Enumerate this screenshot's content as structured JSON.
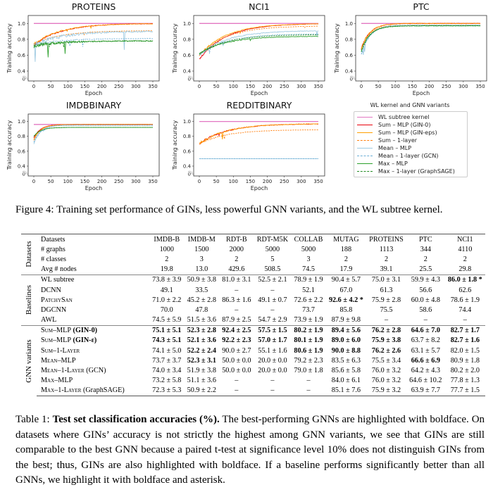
{
  "figure": {
    "caption": "Figure 4: Training set performance of GINs, less powerful GNN variants, and the WL subtree kernel.",
    "legend": {
      "title": "WL kernel and GNN variants",
      "items": [
        {
          "label": "WL subtree kernel",
          "color": "#e377c2",
          "style": "solid"
        },
        {
          "label": "Sum – MLP (GIN-0)",
          "color": "#e8000b",
          "style": "solid"
        },
        {
          "label": "Sum – MLP (GIN-eps)",
          "color": "#ff9f00",
          "style": "solid"
        },
        {
          "label": "Sum – 1-layer",
          "color": "#ff7f0e",
          "style": "dashed"
        },
        {
          "label": "Mean – MLP",
          "color": "#9ecae1",
          "style": "solid"
        },
        {
          "label": "Mean – 1-layer (GCN)",
          "color": "#6baed6",
          "style": "dashed"
        },
        {
          "label": "Max – MLP",
          "color": "#2ca02c",
          "style": "solid"
        },
        {
          "label": "Max – 1-layer (GraphSAGE)",
          "color": "#238b23",
          "style": "dashed"
        }
      ]
    }
  },
  "chart_data": [
    {
      "type": "line",
      "title": "PROTEINS",
      "xlabel": "Epoch",
      "ylabel": "Training accuracy",
      "xlim": [
        0,
        350
      ],
      "ylim": [
        0,
        1.1
      ],
      "xticks": [
        "0",
        "50",
        "100",
        "150",
        "200",
        "250",
        "300",
        "350"
      ],
      "yticks": [
        "0",
        "0.4",
        "0.6",
        "0.8",
        "1.0"
      ],
      "series": [
        {
          "name": "WL subtree kernel",
          "start": 1.0,
          "end": 1.0,
          "noise": 0
        },
        {
          "name": "Sum – MLP (GIN-0)",
          "start": 0.73,
          "end": 1.0,
          "noise": 0.03
        },
        {
          "name": "Sum – MLP (GIN-eps)",
          "start": 0.74,
          "end": 1.0,
          "noise": 0.03
        },
        {
          "name": "Sum – 1-layer",
          "start": 0.74,
          "end": 0.91,
          "noise": 0.01
        },
        {
          "name": "Mean – MLP",
          "start": 0.72,
          "end": 0.9,
          "noise": 0.08
        },
        {
          "name": "Mean – 1-layer (GCN)",
          "start": 0.73,
          "end": 0.81,
          "noise": 0.03
        },
        {
          "name": "Max – MLP",
          "start": 0.72,
          "end": 0.78,
          "noise": 0.06
        },
        {
          "name": "Max – 1-layer (GraphSAGE)",
          "start": 0.72,
          "end": 0.78,
          "noise": 0.03
        }
      ]
    },
    {
      "type": "line",
      "title": "NCI1",
      "xlabel": "Epoch",
      "ylabel": "Training accuracy",
      "xlim": [
        0,
        350
      ],
      "ylim": [
        0,
        1.1
      ],
      "xticks": [
        "0",
        "50",
        "100",
        "150",
        "200",
        "250",
        "300",
        "350"
      ],
      "yticks": [
        "0",
        "0.4",
        "0.6",
        "0.8",
        "1.0"
      ],
      "series": [
        {
          "name": "WL subtree kernel",
          "start": 1.0,
          "end": 1.0,
          "noise": 0
        },
        {
          "name": "Sum – MLP (GIN-0)",
          "start": 0.55,
          "end": 1.0,
          "noise": 0.02
        },
        {
          "name": "Sum – MLP (GIN-eps)",
          "start": 0.6,
          "end": 1.0,
          "noise": 0.02
        },
        {
          "name": "Sum – 1-layer",
          "start": 0.6,
          "end": 0.97,
          "noise": 0.01
        },
        {
          "name": "Mean – MLP",
          "start": 0.6,
          "end": 0.91,
          "noise": 0.03
        },
        {
          "name": "Mean – 1-layer (GCN)",
          "start": 0.6,
          "end": 0.87,
          "noise": 0.02
        },
        {
          "name": "Max – MLP",
          "start": 0.62,
          "end": 0.84,
          "noise": 0.02
        },
        {
          "name": "Max – 1-layer (GraphSAGE)",
          "start": 0.62,
          "end": 0.86,
          "noise": 0.01
        }
      ]
    },
    {
      "type": "line",
      "title": "PTC",
      "xlabel": "Epoch",
      "ylabel": "Training accuracy",
      "xlim": [
        0,
        350
      ],
      "ylim": [
        0,
        1.1
      ],
      "xticks": [
        "0",
        "50",
        "100",
        "150",
        "200",
        "250",
        "300",
        "350"
      ],
      "yticks": [
        "0",
        "0.4",
        "0.6",
        "0.8",
        "1.0"
      ],
      "series": [
        {
          "name": "WL subtree kernel",
          "start": 1.0,
          "end": 1.0,
          "noise": 0
        },
        {
          "name": "Sum – MLP (GIN-0)",
          "start": 0.68,
          "end": 1.0,
          "noise": 0.03
        },
        {
          "name": "Sum – MLP (GIN-eps)",
          "start": 0.68,
          "end": 1.0,
          "noise": 0.04
        },
        {
          "name": "Sum – 1-layer",
          "start": 0.68,
          "end": 0.98,
          "noise": 0.02
        },
        {
          "name": "Mean – MLP",
          "start": 0.6,
          "end": 0.98,
          "noise": 0.04
        },
        {
          "name": "Mean – 1-layer (GCN)",
          "start": 0.62,
          "end": 0.97,
          "noise": 0.03
        },
        {
          "name": "Max – MLP",
          "start": 0.65,
          "end": 0.97,
          "noise": 0.03
        },
        {
          "name": "Max – 1-layer (GraphSAGE)",
          "start": 0.65,
          "end": 0.97,
          "noise": 0.02
        }
      ]
    },
    {
      "type": "line",
      "title": "IMDBBINARY",
      "xlabel": "Epoch",
      "ylabel": "Training accuracy",
      "xlim": [
        0,
        350
      ],
      "ylim": [
        0,
        1.1
      ],
      "xticks": [
        "0",
        "50",
        "100",
        "150",
        "200",
        "250",
        "300",
        "350"
      ],
      "yticks": [
        "0",
        "0.4",
        "0.6",
        "0.8",
        "1.0"
      ],
      "series": [
        {
          "name": "WL subtree kernel",
          "start": 0.96,
          "end": 0.96,
          "noise": 0
        },
        {
          "name": "Sum – MLP (GIN-0)",
          "start": 0.78,
          "end": 0.96,
          "noise": 0.01
        },
        {
          "name": "Sum – MLP (GIN-eps)",
          "start": 0.76,
          "end": 0.96,
          "noise": 0.01
        },
        {
          "name": "Sum – 1-layer",
          "start": 0.74,
          "end": 0.96,
          "noise": 0.015
        },
        {
          "name": "Mean – MLP",
          "start": 0.7,
          "end": 0.95,
          "noise": 0.01
        },
        {
          "name": "Mean – 1-layer (GCN)",
          "start": 0.72,
          "end": 0.95,
          "noise": 0.01
        },
        {
          "name": "Max – MLP",
          "start": 0.8,
          "end": 0.92,
          "noise": 0.005
        },
        {
          "name": "Max – 1-layer (GraphSAGE)",
          "start": 0.8,
          "end": 0.92,
          "noise": 0.005
        }
      ]
    },
    {
      "type": "line",
      "title": "REDDITBINARY",
      "xlabel": "Epoch",
      "ylabel": "Training accuracy",
      "xlim": [
        0,
        350
      ],
      "ylim": [
        0,
        1.1
      ],
      "xticks": [
        "0",
        "50",
        "100",
        "150",
        "200",
        "250",
        "300",
        "350"
      ],
      "yticks": [
        "0",
        "0.4",
        "0.6",
        "0.8",
        "1.0"
      ],
      "series": [
        {
          "name": "WL subtree kernel",
          "start": 1.0,
          "end": 1.0,
          "noise": 0
        },
        {
          "name": "Sum – MLP (GIN-0)",
          "start": 0.7,
          "end": 0.97,
          "noise": 0.03
        },
        {
          "name": "Sum – MLP (GIN-eps)",
          "start": 0.7,
          "end": 0.97,
          "noise": 0.04
        },
        {
          "name": "Sum – 1-layer",
          "start": 0.7,
          "end": 0.89,
          "noise": 0.02
        },
        {
          "name": "Mean – MLP",
          "start": 0.5,
          "end": 0.5,
          "noise": 0
        },
        {
          "name": "Mean – 1-layer (GCN)",
          "start": 0.5,
          "end": 0.5,
          "noise": 0
        }
      ]
    }
  ],
  "table": {
    "caption_label": "Table 1:",
    "caption_bold": "Test set classification accuracies (%).",
    "caption_text": " The best-performing GNNs are highlighted with boldface. On datasets where GINs’ accuracy is not strictly the highest among GNN variants, we see that GINs are still comparable to the best GNN because a paired t-test at significance level 10% does not distinguish GINs from the best; thus, GINs are also highlighted with boldface. If a baseline performs significantly better than all GNNs, we highlight it with boldface and asterisk.",
    "groups": {
      "datasets": "Datasets",
      "baselines": "Baselines",
      "gnn": "GNN variants"
    },
    "dataset_rows": [
      {
        "label": "Datasets",
        "cells": [
          "IMDB-B",
          "IMDB-M",
          "RDT-B",
          "RDT-M5K",
          "COLLAB",
          "MUTAG",
          "PROTEINS",
          "PTC",
          "NCI1"
        ]
      },
      {
        "label": "# graphs",
        "cells": [
          "1000",
          "1500",
          "2000",
          "5000",
          "5000",
          "188",
          "1113",
          "344",
          "4110"
        ]
      },
      {
        "label": "# classes",
        "cells": [
          "2",
          "3",
          "2",
          "5",
          "3",
          "2",
          "2",
          "2",
          "2"
        ]
      },
      {
        "label": "Avg # nodes",
        "cells": [
          "19.8",
          "13.0",
          "429.6",
          "508.5",
          "74.5",
          "17.9",
          "39.1",
          "25.5",
          "29.8"
        ]
      }
    ],
    "baseline_rows": [
      {
        "label": "WL subtree",
        "cells": [
          "73.8 ± 3.9",
          "50.9 ± 3.8",
          "81.0 ± 3.1",
          "52.5 ± 2.1",
          "78.9 ± 1.9",
          "90.4 ± 5.7",
          "75.0 ± 3.1",
          "59.9 ± 4.3",
          "86.0 ± 1.8 *"
        ],
        "bold": [
          false,
          false,
          false,
          false,
          false,
          false,
          false,
          false,
          true
        ]
      },
      {
        "label": "DCNN",
        "cells": [
          "49.1",
          "33.5",
          "–",
          "–",
          "52.1",
          "67.0",
          "61.3",
          "56.6",
          "62.6"
        ],
        "bold": [
          false,
          false,
          false,
          false,
          false,
          false,
          false,
          false,
          false
        ]
      },
      {
        "label": "PatchySan",
        "cells": [
          "71.0 ± 2.2",
          "45.2 ± 2.8",
          "86.3 ± 1.6",
          "49.1 ± 0.7",
          "72.6 ± 2.2",
          "92.6 ± 4.2 *",
          "75.9 ± 2.8",
          "60.0 ± 4.8",
          "78.6 ± 1.9"
        ],
        "bold": [
          false,
          false,
          false,
          false,
          false,
          true,
          false,
          false,
          false
        ]
      },
      {
        "label": "DGCNN",
        "cells": [
          "70.0",
          "47.8",
          "–",
          "–",
          "73.7",
          "85.8",
          "75.5",
          "58.6",
          "74.4"
        ],
        "bold": [
          false,
          false,
          false,
          false,
          false,
          false,
          false,
          false,
          false
        ]
      },
      {
        "label": "AWL",
        "cells": [
          "74.5 ± 5.9",
          "51.5 ± 3.6",
          "87.9 ± 2.5",
          "54.7 ± 2.9",
          "73.9 ± 1.9",
          "87.9 ± 9.8",
          "–",
          "–",
          "–"
        ],
        "bold": [
          false,
          false,
          false,
          false,
          false,
          false,
          false,
          false,
          false
        ]
      }
    ],
    "gnn_rows": [
      {
        "label": "Sum–MLP",
        "suffix": "GIN-0",
        "cells": [
          "75.1 ± 5.1",
          "52.3 ± 2.8",
          "92.4 ± 2.5",
          "57.5 ± 1.5",
          "80.2 ± 1.9",
          "89.4 ± 5.6",
          "76.2 ± 2.8",
          "64.6 ± 7.0",
          "82.7 ± 1.7"
        ],
        "bold": [
          true,
          true,
          true,
          true,
          true,
          true,
          true,
          true,
          true
        ]
      },
      {
        "label": "Sum–MLP",
        "suffix": "GIN-ε",
        "cells": [
          "74.3 ± 5.1",
          "52.1 ± 3.6",
          "92.2 ± 2.3",
          "57.0 ± 1.7",
          "80.1 ± 1.9",
          "89.0 ± 6.0",
          "75.9 ± 3.8",
          "63.7 ± 8.2",
          "82.7 ± 1.6"
        ],
        "bold": [
          true,
          true,
          true,
          true,
          true,
          true,
          true,
          false,
          true
        ]
      },
      {
        "label": "Sum–1-Layer",
        "suffix": "",
        "cells": [
          "74.1 ± 5.0",
          "52.2 ± 2.4",
          "90.0 ± 2.7",
          "55.1 ± 1.6",
          "80.6 ± 1.9",
          "90.0 ± 8.8",
          "76.2 ± 2.6",
          "63.1 ± 5.7",
          "82.0 ± 1.5"
        ],
        "bold": [
          false,
          true,
          false,
          false,
          true,
          true,
          true,
          false,
          false
        ]
      },
      {
        "label": "Mean–MLP",
        "suffix": "",
        "cells": [
          "73.7 ± 3.7",
          "52.3 ± 3.1",
          "50.0 ± 0.0",
          "20.0 ± 0.0",
          "79.2 ± 2.3",
          "83.5 ± 6.3",
          "75.5 ± 3.4",
          "66.6 ± 6.9",
          "80.9 ± 1.8"
        ],
        "bold": [
          false,
          true,
          false,
          false,
          false,
          false,
          false,
          true,
          false
        ]
      },
      {
        "label": "Mean–1-Layer",
        "suffix": "GCN",
        "cells": [
          "74.0 ± 3.4",
          "51.9 ± 3.8",
          "50.0 ± 0.0",
          "20.0 ± 0.0",
          "79.0 ± 1.8",
          "85.6 ± 5.8",
          "76.0 ± 3.2",
          "64.2 ± 4.3",
          "80.2 ± 2.0"
        ],
        "bold": [
          false,
          false,
          false,
          false,
          false,
          false,
          false,
          false,
          false
        ]
      },
      {
        "label": "Max–MLP",
        "suffix": "",
        "cells": [
          "73.2 ± 5.8",
          "51.1 ± 3.6",
          "–",
          "–",
          "–",
          "84.0 ± 6.1",
          "76.0 ± 3.2",
          "64.6 ± 10.2",
          "77.8 ± 1.3"
        ],
        "bold": [
          false,
          false,
          false,
          false,
          false,
          false,
          false,
          false,
          false
        ]
      },
      {
        "label": "Max–1-Layer",
        "suffix": "GraphSAGE",
        "cells": [
          "72.3 ± 5.3",
          "50.9 ± 2.2",
          "–",
          "–",
          "–",
          "85.1 ± 7.6",
          "75.9 ± 3.2",
          "63.9 ± 7.7",
          "77.7 ± 1.5"
        ],
        "bold": [
          false,
          false,
          false,
          false,
          false,
          false,
          false,
          false,
          false
        ]
      }
    ]
  }
}
